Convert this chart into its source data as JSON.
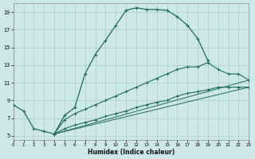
{
  "xlabel": "Humidex (Indice chaleur)",
  "bg_color": "#cce8e8",
  "grid_color": "#aacccc",
  "line_color": "#1e6b5a",
  "xlim": [
    0,
    23
  ],
  "ylim": [
    4.5,
    20.0
  ],
  "xticks": [
    0,
    1,
    2,
    3,
    4,
    5,
    6,
    7,
    8,
    9,
    10,
    11,
    12,
    13,
    14,
    15,
    16,
    17,
    18,
    19,
    20,
    21,
    22,
    23
  ],
  "yticks": [
    5,
    7,
    9,
    11,
    13,
    15,
    17,
    19
  ],
  "curve_main_x": [
    0,
    1,
    2,
    3,
    4,
    5,
    6,
    7,
    8,
    9,
    10,
    11,
    12,
    13,
    14,
    15,
    16,
    17,
    18,
    19
  ],
  "curve_main_y": [
    8.5,
    7.8,
    5.8,
    5.5,
    5.2,
    7.3,
    8.2,
    12.0,
    14.2,
    15.8,
    17.5,
    19.2,
    19.5,
    19.3,
    19.3,
    19.2,
    18.5,
    17.5,
    16.0,
    13.5
  ],
  "curve_mid_x": [
    4,
    5,
    6,
    7,
    8,
    9,
    10,
    11,
    12,
    13,
    14,
    15,
    16,
    17,
    18,
    19,
    20,
    21,
    22,
    23
  ],
  "curve_mid_y": [
    5.2,
    6.8,
    7.5,
    8.0,
    8.5,
    9.0,
    9.5,
    10.0,
    10.5,
    11.0,
    11.5,
    12.0,
    12.5,
    12.8,
    12.8,
    13.3,
    12.5,
    12.0,
    12.0,
    11.3
  ],
  "curve_low_x": [
    4,
    5,
    6,
    7,
    8,
    9,
    10,
    11,
    12,
    13,
    14,
    15,
    16,
    17,
    18,
    19,
    20,
    21,
    22,
    23
  ],
  "curve_low_y": [
    5.2,
    5.8,
    6.2,
    6.5,
    6.8,
    7.2,
    7.5,
    7.8,
    8.2,
    8.5,
    8.8,
    9.0,
    9.5,
    9.8,
    10.0,
    10.2,
    10.5,
    10.5,
    10.5,
    10.5
  ]
}
